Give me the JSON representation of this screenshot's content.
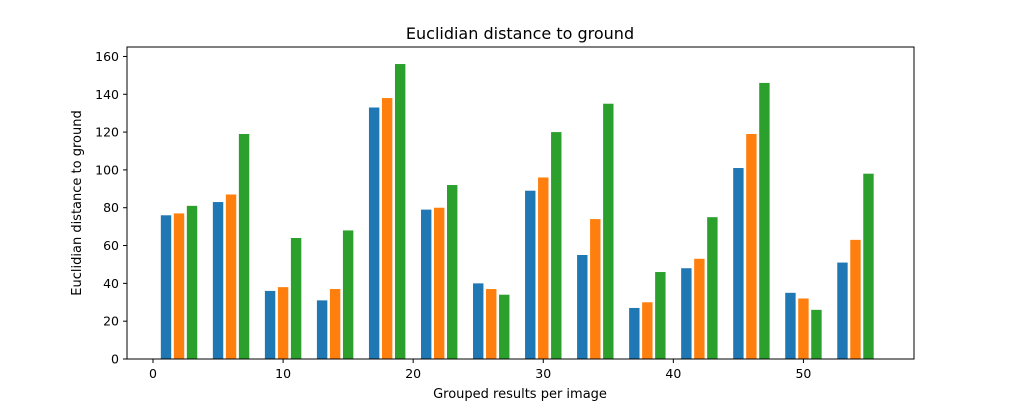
{
  "chart_data": {
    "type": "bar",
    "title": "Euclidian distance to ground",
    "xlabel": "Grouped results per image",
    "ylabel": "Euclidian distance to ground",
    "xlim": [
      -2,
      58.5
    ],
    "ylim": [
      0,
      165
    ],
    "xticks": [
      0,
      10,
      20,
      30,
      40,
      50
    ],
    "yticks": [
      0,
      20,
      40,
      60,
      80,
      100,
      120,
      140,
      160
    ],
    "grid": false,
    "legend": "none",
    "bar_width": 0.8,
    "series": [
      {
        "color": "#1f77b4",
        "x": [
          1,
          5,
          9,
          13,
          17,
          21,
          25,
          29,
          33,
          37,
          41,
          45,
          49,
          53
        ],
        "values": [
          76,
          83,
          36,
          31,
          133,
          79,
          40,
          89,
          55,
          27,
          48,
          101,
          35,
          51
        ]
      },
      {
        "color": "#ff7f0e",
        "x": [
          2,
          6,
          10,
          14,
          18,
          22,
          26,
          30,
          34,
          38,
          42,
          46,
          50,
          54
        ],
        "values": [
          77,
          87,
          38,
          37,
          138,
          80,
          37,
          96,
          74,
          30,
          53,
          119,
          32,
          63
        ]
      },
      {
        "color": "#2ca02c",
        "x": [
          3,
          7,
          11,
          15,
          19,
          23,
          27,
          31,
          35,
          39,
          43,
          47,
          51,
          55
        ],
        "values": [
          81,
          119,
          64,
          68,
          156,
          92,
          34,
          120,
          135,
          46,
          75,
          146,
          26,
          98
        ]
      }
    ]
  }
}
